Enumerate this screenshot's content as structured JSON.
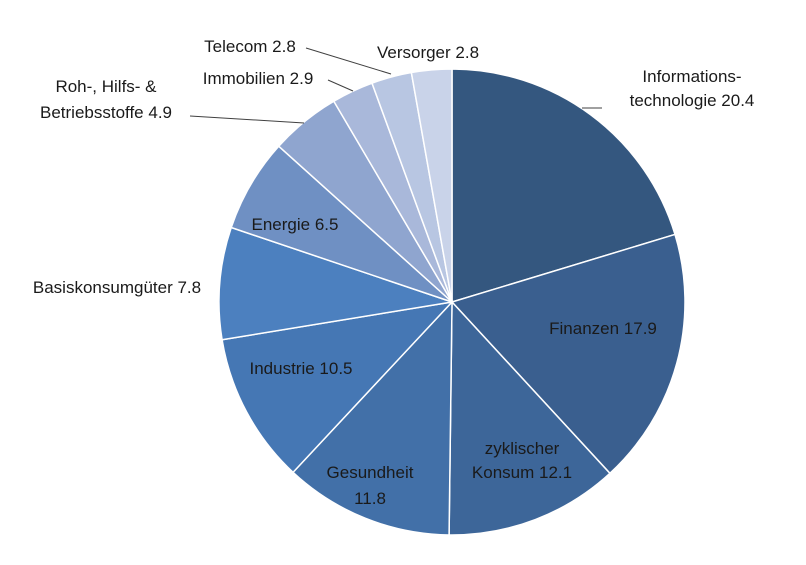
{
  "chart_data": {
    "type": "pie",
    "title": "",
    "slices": [
      {
        "label_lines": [
          "Informations-",
          "technologie 20.4"
        ],
        "value": 20.4,
        "color": "#34577f"
      },
      {
        "label_lines": [
          "Finanzen 17.9"
        ],
        "value": 17.9,
        "color": "#3a5f8f"
      },
      {
        "label_lines": [
          "zyklischer",
          "Konsum 12.1"
        ],
        "value": 12.1,
        "color": "#3d6699"
      },
      {
        "label_lines": [
          "Gesundheit",
          "11.8"
        ],
        "value": 11.8,
        "color": "#4270a8"
      },
      {
        "label_lines": [
          "Industrie 10.5"
        ],
        "value": 10.5,
        "color": "#4577b4"
      },
      {
        "label_lines": [
          "Basiskonsumgüter  7.8"
        ],
        "value": 7.8,
        "color": "#4c80bf"
      },
      {
        "label_lines": [
          "Energie 6.5"
        ],
        "value": 6.5,
        "color": "#6f90c3"
      },
      {
        "label_lines": [
          "Roh-, Hilfs- &",
          "Betriebsstoffe  4.9"
        ],
        "value": 4.9,
        "color": "#8fa5cf"
      },
      {
        "label_lines": [
          "Immobilien 2.9"
        ],
        "value": 2.9,
        "color": "#a9b8da"
      },
      {
        "label_lines": [
          "Telecom 2.8"
        ],
        "value": 2.8,
        "color": "#b8c6e2"
      },
      {
        "label_lines": [
          "Versorger 2.8"
        ],
        "value": 2.8,
        "color": "#c9d3e9"
      }
    ]
  }
}
